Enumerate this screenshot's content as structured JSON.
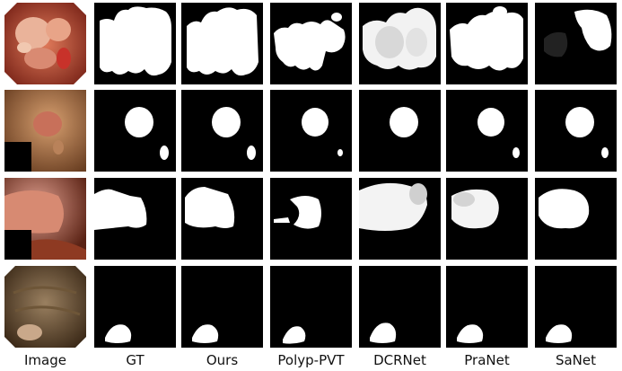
{
  "figure": {
    "column_labels": [
      "Image",
      "GT",
      "Ours",
      "Polyp-PVT",
      "DCRNet",
      "PraNet",
      "SaNet"
    ],
    "rows": [
      {
        "image": "polyp-image-1"
      },
      {
        "image": "polyp-image-2"
      },
      {
        "image": "polyp-image-3"
      },
      {
        "image": "polyp-image-4"
      }
    ]
  }
}
